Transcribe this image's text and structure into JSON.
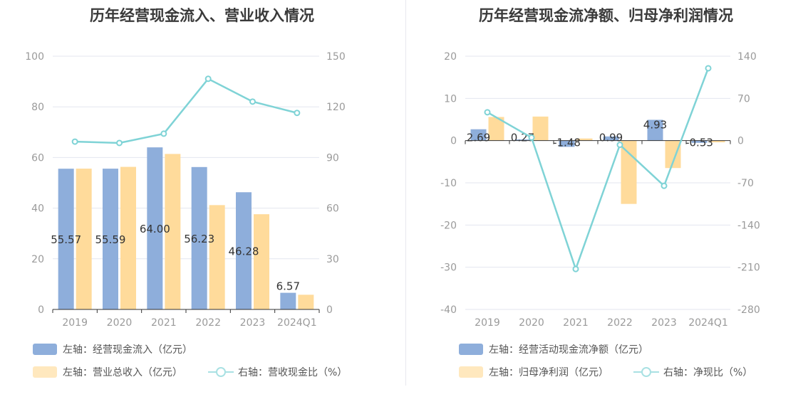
{
  "chart_data": [
    {
      "type": "bar+line",
      "title": "历年经营现金流入、营业收入情况",
      "categories": [
        "2019",
        "2020",
        "2021",
        "2022",
        "2023",
        "2024Q1"
      ],
      "left_axis": {
        "ylim": [
          0,
          100
        ],
        "ticks": [
          "0",
          "20",
          "40",
          "60",
          "80",
          "100"
        ]
      },
      "right_axis": {
        "ylim": [
          0,
          150
        ],
        "ticks": [
          "0",
          "30",
          "60",
          "90",
          "120",
          "150"
        ]
      },
      "series": [
        {
          "name": "左轴：经营现金流入（亿元）",
          "type": "bar",
          "axis": "left",
          "color": "#8eaedb",
          "values": [
            55.57,
            55.59,
            64.0,
            56.23,
            46.28,
            6.57
          ],
          "labels": [
            "55.57",
            "55.59",
            "64.00",
            "56.23",
            "46.28",
            "6.57"
          ]
        },
        {
          "name": "左轴：营业总收入（亿元）",
          "type": "bar",
          "axis": "left",
          "color": "#ffdb9b",
          "values": [
            55.6,
            56.3,
            61.4,
            41.2,
            37.6,
            5.8
          ]
        },
        {
          "name": "右轴：营收现金比（%）",
          "type": "line",
          "axis": "right",
          "color": "#7fd3d6",
          "values": [
            99.4,
            98.6,
            104.1,
            136.6,
            123.1,
            116.4
          ]
        }
      ]
    },
    {
      "type": "bar+line",
      "title": "历年经营现金流净额、归母净利润情况",
      "categories": [
        "2019",
        "2020",
        "2021",
        "2022",
        "2023",
        "2024Q1"
      ],
      "left_axis": {
        "ylim": [
          -40,
          20
        ],
        "ticks": [
          "-40",
          "-30",
          "-20",
          "-10",
          "0",
          "10",
          "20"
        ]
      },
      "right_axis": {
        "ylim": [
          -280,
          140
        ],
        "ticks": [
          "-280",
          "-210",
          "-140",
          "-70",
          "0",
          "70",
          "140"
        ]
      },
      "series": [
        {
          "name": "左轴：经营活动现金流净额（亿元）",
          "type": "bar",
          "axis": "left",
          "color": "#8eaedb",
          "values": [
            2.69,
            0.27,
            -1.48,
            0.99,
            4.93,
            -0.53
          ],
          "labels": [
            "2.69",
            "0.27",
            "-1.48",
            "0.99",
            "4.93",
            "-0.53"
          ]
        },
        {
          "name": "左轴：归母净利润（亿元）",
          "type": "bar",
          "axis": "left",
          "color": "#ffdb9b",
          "values": [
            5.6,
            5.7,
            0.5,
            -15.0,
            -6.5,
            -0.4
          ]
        },
        {
          "name": "右轴：净现比（%）",
          "type": "line",
          "axis": "right",
          "color": "#7fd3d6",
          "values": [
            47,
            5,
            -213,
            -7,
            -75,
            120
          ]
        }
      ]
    }
  ]
}
